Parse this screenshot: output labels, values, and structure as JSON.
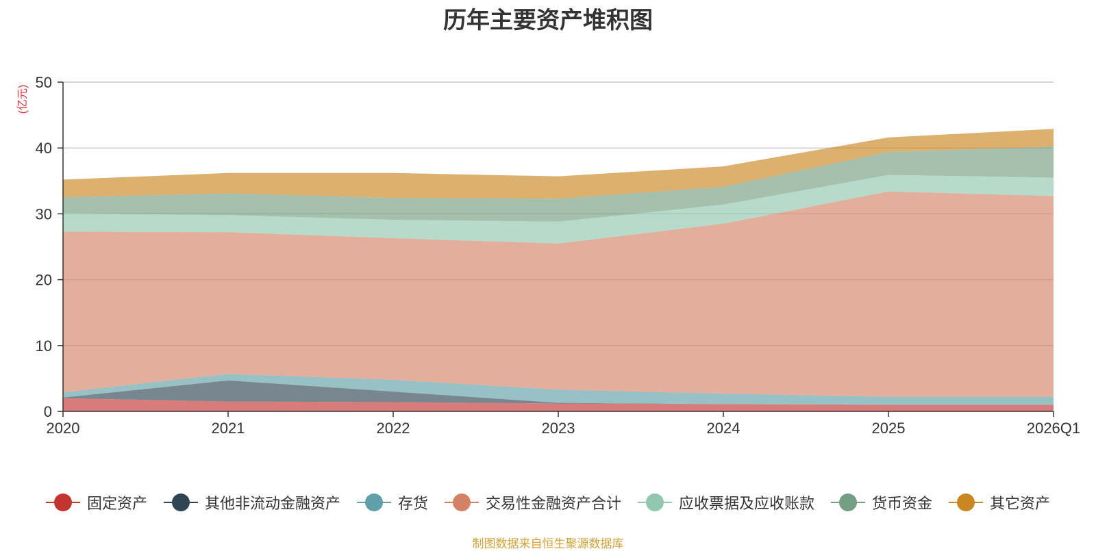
{
  "chart_data": {
    "type": "area",
    "stacked": true,
    "title": "历年主要资产堆积图",
    "ylabel": "(亿元)",
    "xlabel": "",
    "ylim": [
      0,
      50
    ],
    "yticks": [
      0,
      10,
      20,
      30,
      40,
      50
    ],
    "categories": [
      "2020",
      "2021",
      "2022",
      "2023",
      "2024",
      "2025",
      "2026Q1"
    ],
    "legend_position": "bottom",
    "series": [
      {
        "name": "固定资产",
        "color": "#c23531",
        "values": [
          2.0,
          1.5,
          1.4,
          1.2,
          1.1,
          1.0,
          1.0
        ]
      },
      {
        "name": "其他非流动金融资产",
        "color": "#2f4554",
        "values": [
          0.1,
          3.2,
          1.6,
          0.1,
          0.0,
          0.0,
          0.0
        ]
      },
      {
        "name": "存货",
        "color": "#61a0a8",
        "values": [
          0.8,
          1.0,
          1.8,
          2.0,
          1.6,
          1.2,
          1.2
        ]
      },
      {
        "name": "交易性金融资产合计",
        "color": "#d48265",
        "values": [
          24.4,
          21.5,
          21.5,
          22.2,
          25.8,
          31.2,
          30.5
        ]
      },
      {
        "name": "应收票据及应收账款",
        "color": "#91c7ae",
        "values": [
          2.8,
          2.6,
          2.8,
          3.3,
          2.9,
          2.5,
          2.8
        ]
      },
      {
        "name": "货币资金",
        "color": "#749f83",
        "values": [
          2.4,
          3.3,
          3.3,
          3.5,
          2.7,
          3.5,
          4.7
        ]
      },
      {
        "name": "其它资产",
        "color": "#ca8622",
        "values": [
          2.7,
          3.1,
          3.8,
          3.4,
          3.1,
          2.2,
          2.7
        ]
      }
    ]
  },
  "source_note": "制图数据来自恒生聚源数据库"
}
